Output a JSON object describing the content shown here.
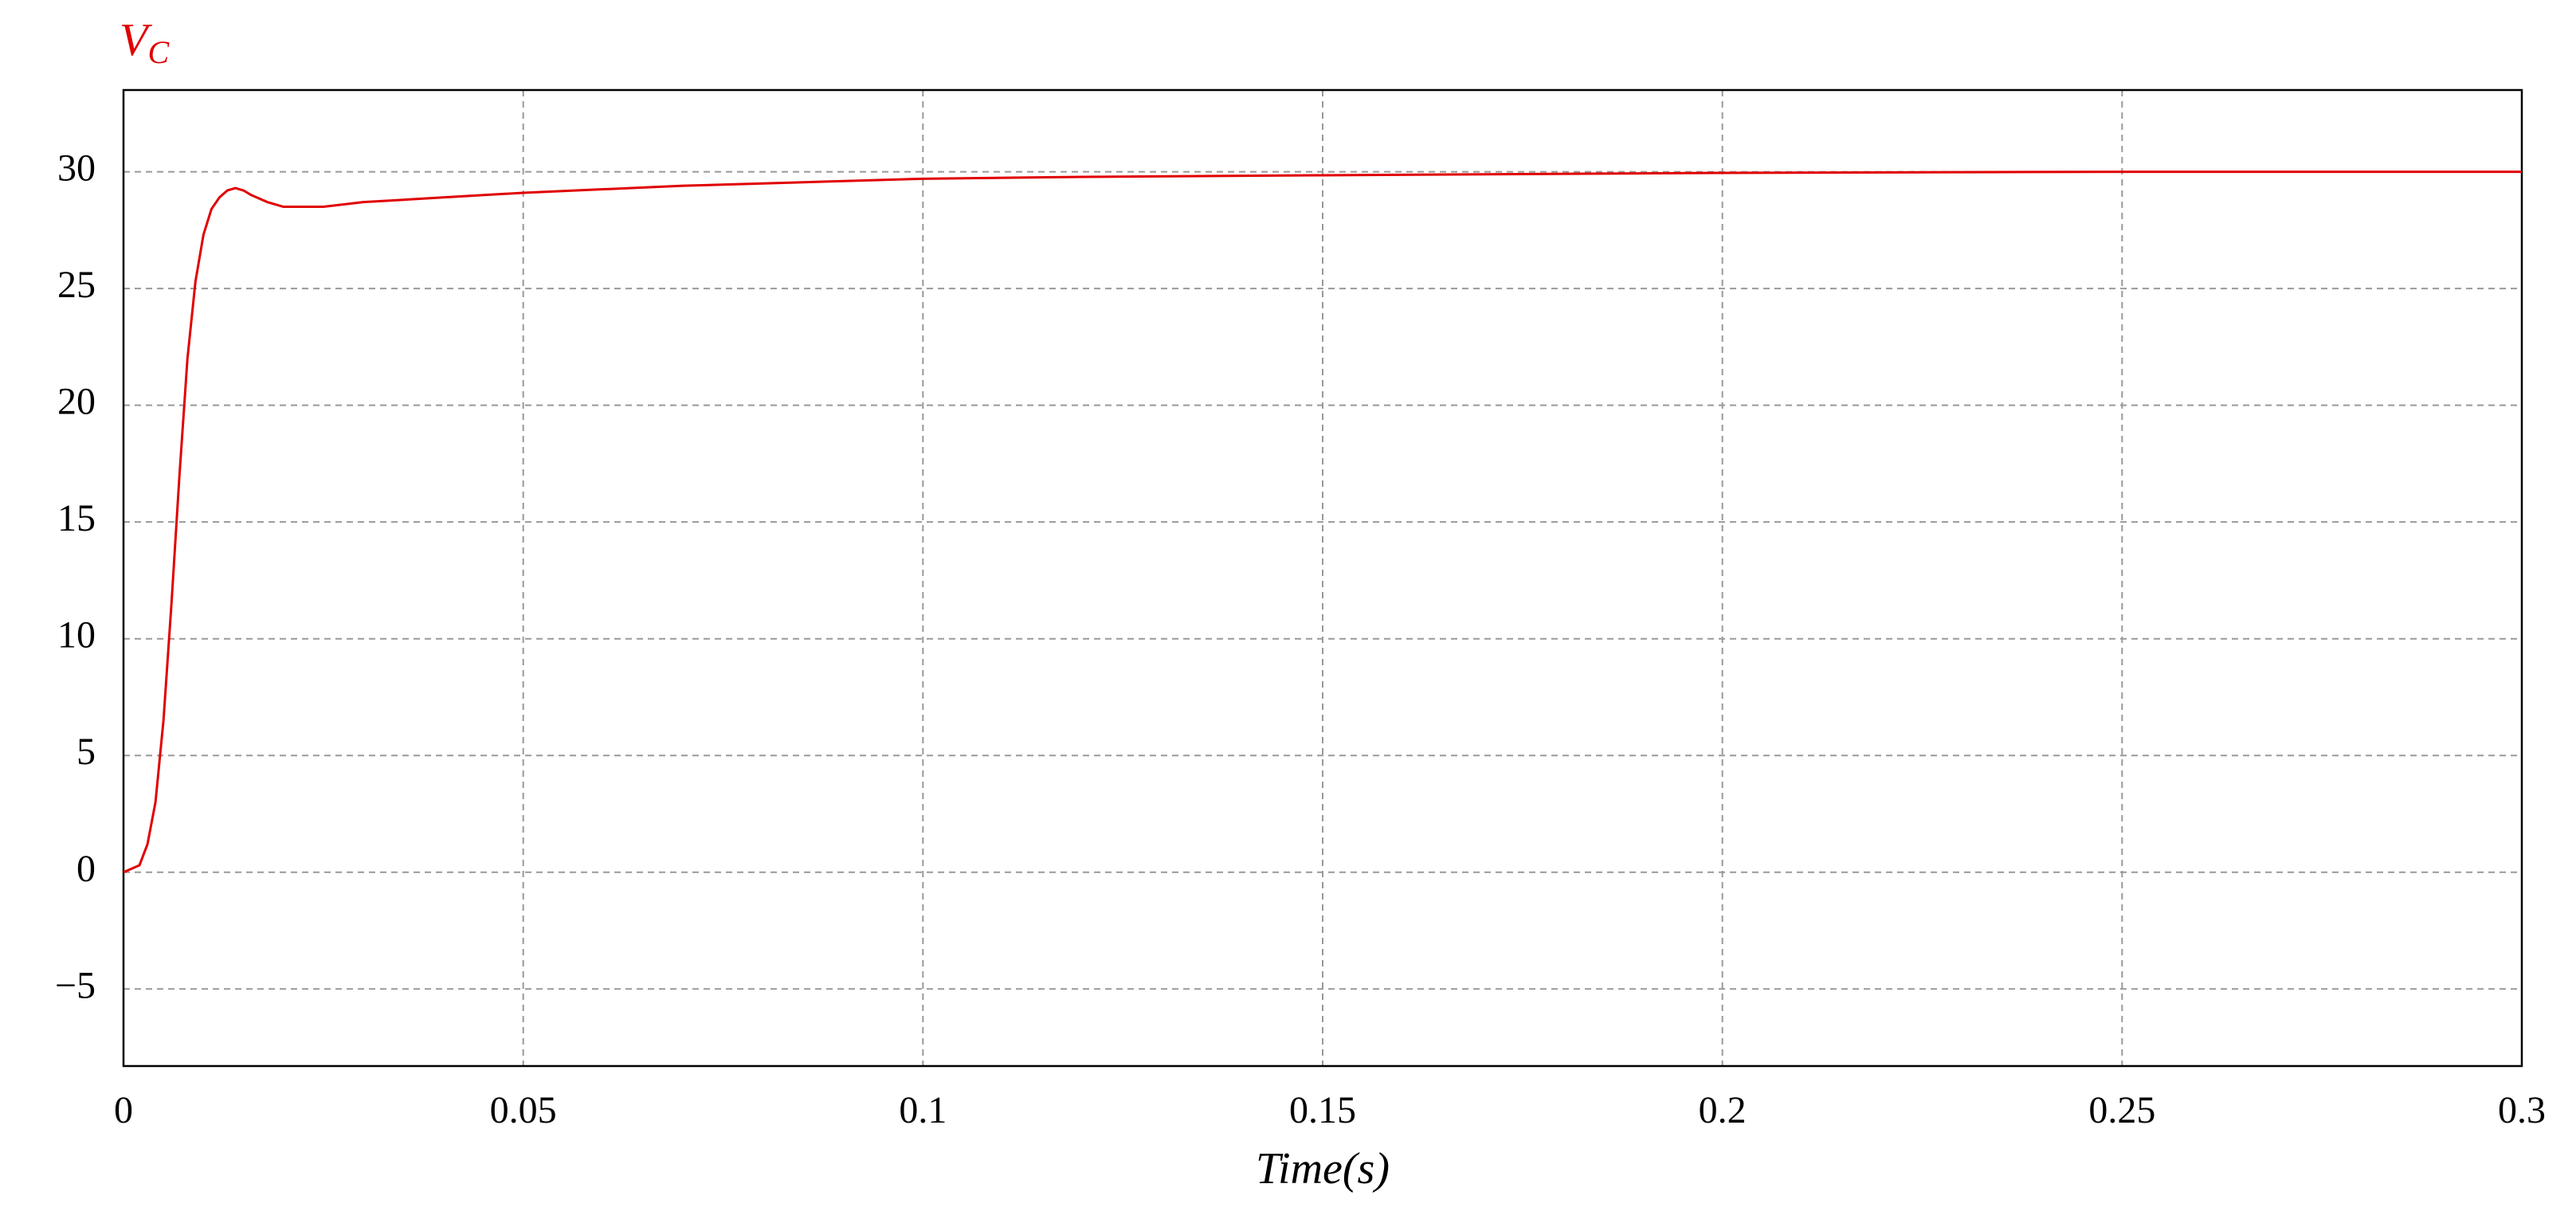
{
  "chart_data": {
    "type": "line",
    "ylabel": "V",
    "ylabel_subscript": "C",
    "xlabel": "Time(s)",
    "x": [
      0,
      0.002,
      0.003,
      0.004,
      0.005,
      0.006,
      0.007,
      0.008,
      0.009,
      0.01,
      0.011,
      0.012,
      0.013,
      0.014,
      0.015,
      0.016,
      0.018,
      0.02,
      0.022,
      0.025,
      0.03,
      0.04,
      0.05,
      0.06,
      0.07,
      0.08,
      0.1,
      0.12,
      0.15,
      0.2,
      0.25,
      0.3
    ],
    "series": [
      {
        "name": "V_C",
        "color": "#e00000",
        "values": [
          0,
          0.3,
          1.2,
          3,
          6.5,
          11.5,
          17,
          22,
          25.3,
          27.3,
          28.4,
          28.9,
          29.2,
          29.3,
          29.2,
          29,
          28.7,
          28.5,
          28.5,
          28.5,
          28.7,
          28.9,
          29.1,
          29.25,
          29.4,
          29.5,
          29.7,
          29.78,
          29.85,
          29.95,
          30,
          30
        ]
      }
    ],
    "xlim": [
      0,
      0.3
    ],
    "ylim": [
      -8.3,
      33.5
    ],
    "xticks": [
      0,
      0.05,
      0.1,
      0.15,
      0.2,
      0.25,
      0.3
    ],
    "yticks": [
      {
        "value": -5,
        "label": "−5"
      },
      0,
      5,
      10,
      15,
      20,
      25,
      30
    ],
    "grid": true
  }
}
